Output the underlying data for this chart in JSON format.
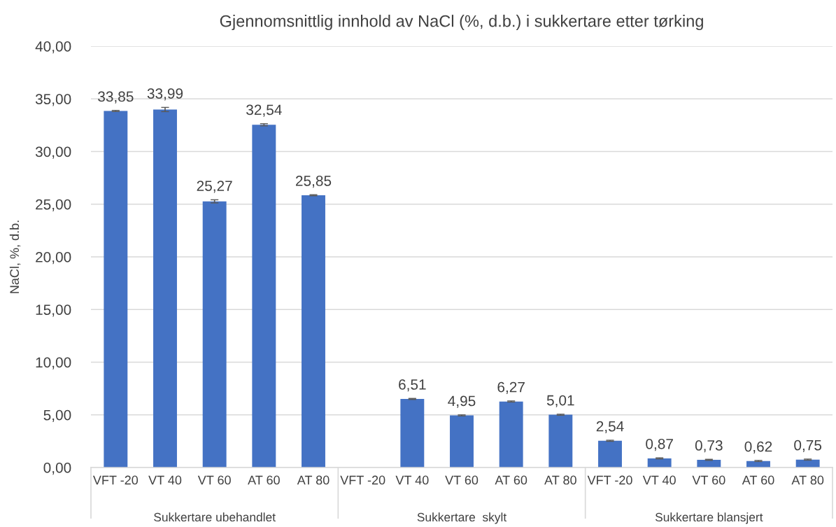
{
  "chart_data": {
    "type": "bar",
    "title": "Gjennomsnittlig innhold av NaCl (%, d.b.) i sukkertare etter tørking",
    "ylabel": "NaCl, %, d.b.",
    "categories": [
      "VFT -20",
      "VT 40",
      "VT 60",
      "AT 60",
      "AT 80",
      "VFT -20",
      "VT 40",
      "VT 60",
      "AT 60",
      "AT 80",
      "VFT -20",
      "VT 40",
      "VT 60",
      "AT 60",
      "AT 80"
    ],
    "values": [
      33.85,
      33.99,
      25.27,
      32.54,
      25.85,
      null,
      6.51,
      4.95,
      6.27,
      5.01,
      2.54,
      0.87,
      0.73,
      0.62,
      0.75
    ],
    "errors": [
      0.05,
      0.2,
      0.15,
      0.1,
      0.05,
      null,
      0.05,
      0.05,
      0.05,
      0.05,
      0.05,
      0.05,
      0.05,
      0.05,
      0.05
    ],
    "color": "#4472c4",
    "value_labels": [
      "33,85",
      "33,99",
      "25,27",
      "32,54",
      "25,85",
      null,
      "6,51",
      "4,95",
      "6,27",
      "5,01",
      "2,54",
      "0,87",
      "0,73",
      "0,62",
      "0,75"
    ],
    "ylim": [
      0,
      40
    ],
    "yticks": [
      {
        "value": 0,
        "label": "0,00"
      },
      {
        "value": 5,
        "label": "5,00"
      },
      {
        "value": 10,
        "label": "10,00"
      },
      {
        "value": 15,
        "label": "15,00"
      },
      {
        "value": 20,
        "label": "20,00"
      },
      {
        "value": 25,
        "label": "25,00"
      },
      {
        "value": 30,
        "label": "30,00"
      },
      {
        "value": 35,
        "label": "35,00"
      },
      {
        "value": 40,
        "label": "40,00"
      }
    ],
    "grid": "y",
    "annotations": [
      "Sukkertare ubehandlet",
      "Sukkertare  skylt",
      "Sukkertare blansjert"
    ]
  }
}
